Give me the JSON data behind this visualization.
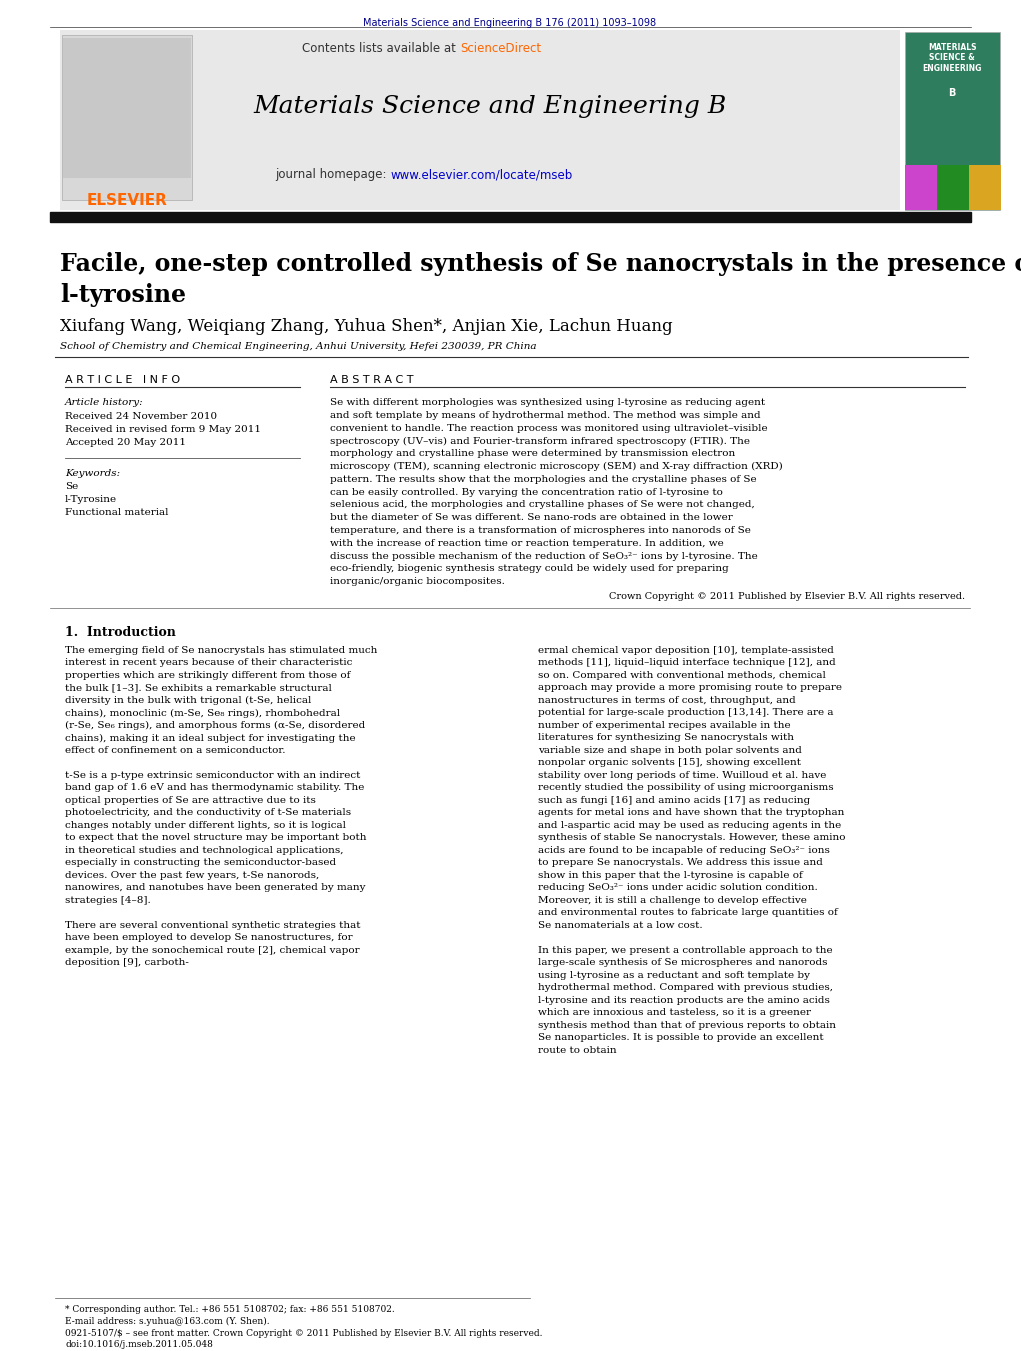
{
  "bg_color": "#ffffff",
  "top_journal_ref": "Materials Science and Engineering B 176 (2011) 1093–1098",
  "top_journal_ref_color": "#00008B",
  "header_bg": "#E8E8E8",
  "header_sciencedirect_color": "#FF6600",
  "header_homepage_url_color": "#0000CD",
  "article_title_line1": "Facile, one-step controlled synthesis of Se nanocrystals in the presence of",
  "article_title_line2": "l-tyrosine",
  "authors": "Xiufang Wang, Weiqiang Zhang, Yuhua Shen*, Anjian Xie, Lachun Huang",
  "affiliation": "School of Chemistry and Chemical Engineering, Anhui University, Hefei 230039, PR China",
  "article_info_title": "A R T I C L E   I N F O",
  "abstract_title": "A B S T R A C T",
  "article_history_label": "Article history:",
  "received1": "Received 24 November 2010",
  "received2": "Received in revised form 9 May 2011",
  "accepted": "Accepted 20 May 2011",
  "keywords_label": "Keywords:",
  "keyword1": "Se",
  "keyword2": "l-Tyrosine",
  "keyword3": "Functional material",
  "abstract_text": "Se with different morphologies was synthesized using l-tyrosine as reducing agent and soft template by means of hydrothermal method. The method was simple and convenient to handle. The reaction process was monitored using ultraviolet–visible spectroscopy (UV–vis) and Fourier-transform infrared spectroscopy (FTIR). The morphology and crystalline phase were determined by transmission electron microscopy (TEM), scanning electronic microscopy (SEM) and X-ray diffraction (XRD) pattern. The results show that the morphologies and the crystalline phases of Se can be easily controlled. By varying the concentration ratio of l-tyrosine to selenious acid, the morphologies and crystalline phases of Se were not changed, but the diameter of Se was different. Se nano-rods are obtained in the lower temperature, and there is a transformation of microspheres into nanorods of Se with the increase of reaction time or reaction temperature. In addition, we discuss the possible mechanism of the reduction of SeO₃²⁻ ions by l-tyrosine. The eco-friendly, biogenic synthesis strategy could be widely used for preparing inorganic/organic biocomposites.",
  "copyright_text": "Crown Copyright © 2011 Published by Elsevier B.V. All rights reserved.",
  "section1_title": "1.  Introduction",
  "intro_col1": "The emerging field of Se nanocrystals has stimulated much interest in recent years because of their characteristic properties which are strikingly different from those of the bulk [1–3]. Se exhibits a remarkable structural diversity in the bulk with trigonal (t-Se, helical chains), monoclinic (m-Se, Se₈ rings), rhombohedral (r-Se, Se₆ rings), and amorphous forms (α-Se, disordered chains), making it an ideal subject for investigating the effect of confinement on a semiconductor.\n\n    t-Se is a p-type extrinsic semiconductor with an indirect band gap of 1.6 eV and has thermodynamic stability. The optical properties of Se are attractive due to its photoelectricity, and the conductivity of t-Se materials changes notably under different lights, so it is logical to expect that the novel structure may be important both in theoretical studies and technological applications, especially in constructing the semiconductor-based devices. Over the past few years, t-Se nanorods, nanowires, and nanotubes have been generated by many strategies [4–8].\n\n    There are several conventional synthetic strategies that have been employed to develop Se nanostructures, for example, by the sonochemical route [2], chemical vapor deposition [9], carboth-",
  "intro_col2": "ermal chemical vapor deposition [10], template-assisted methods [11], liquid–liquid interface technique [12], and so on. Compared with conventional methods, chemical approach may provide a more promising route to prepare nanostructures in terms of cost, throughput, and potential for large-scale production [13,14]. There are a number of experimental recipes available in the literatures for synthesizing Se nanocrystals with variable size and shape in both polar solvents and nonpolar organic solvents [15], showing excellent stability over long periods of time. Wuilloud et al. have recently studied the possibility of using microorganisms such as fungi [16] and amino acids [17] as reducing agents for metal ions and have shown that the tryptophan and l-aspartic acid may be used as reducing agents in the synthesis of stable Se nanocrystals. However, these amino acids are found to be incapable of reducing SeO₃²⁻ ions to prepare Se nanocrystals. We address this issue and show in this paper that the l-tyrosine is capable of reducing SeO₃²⁻ ions under acidic solution condition. Moreover, it is still a challenge to develop effective and environmental routes to fabricate large quantities of Se nanomaterials at a low cost.\n\n    In this paper, we present a controllable approach to the large-scale synthesis of Se microspheres and nanorods using l-tyrosine as a reductant and soft template by hydrothermal method. Compared with previous studies, l-tyrosine and its reaction products are the amino acids which are innoxious and tasteless, so it is a greener synthesis method than that of previous reports to obtain Se nanoparticles. It is possible to provide an excellent route to obtain",
  "footnote_star": "* Corresponding author. Tel.: +86 551 5108702; fax: +86 551 5108702.",
  "footnote_email": "E-mail address: s.yuhua@163.com (Y. Shen).",
  "footnote_issn": "0921-5107/$ – see front matter. Crown Copyright © 2011 Published by Elsevier B.V. All rights reserved.",
  "footnote_doi": "doi:10.1016/j.mseb.2011.05.048"
}
